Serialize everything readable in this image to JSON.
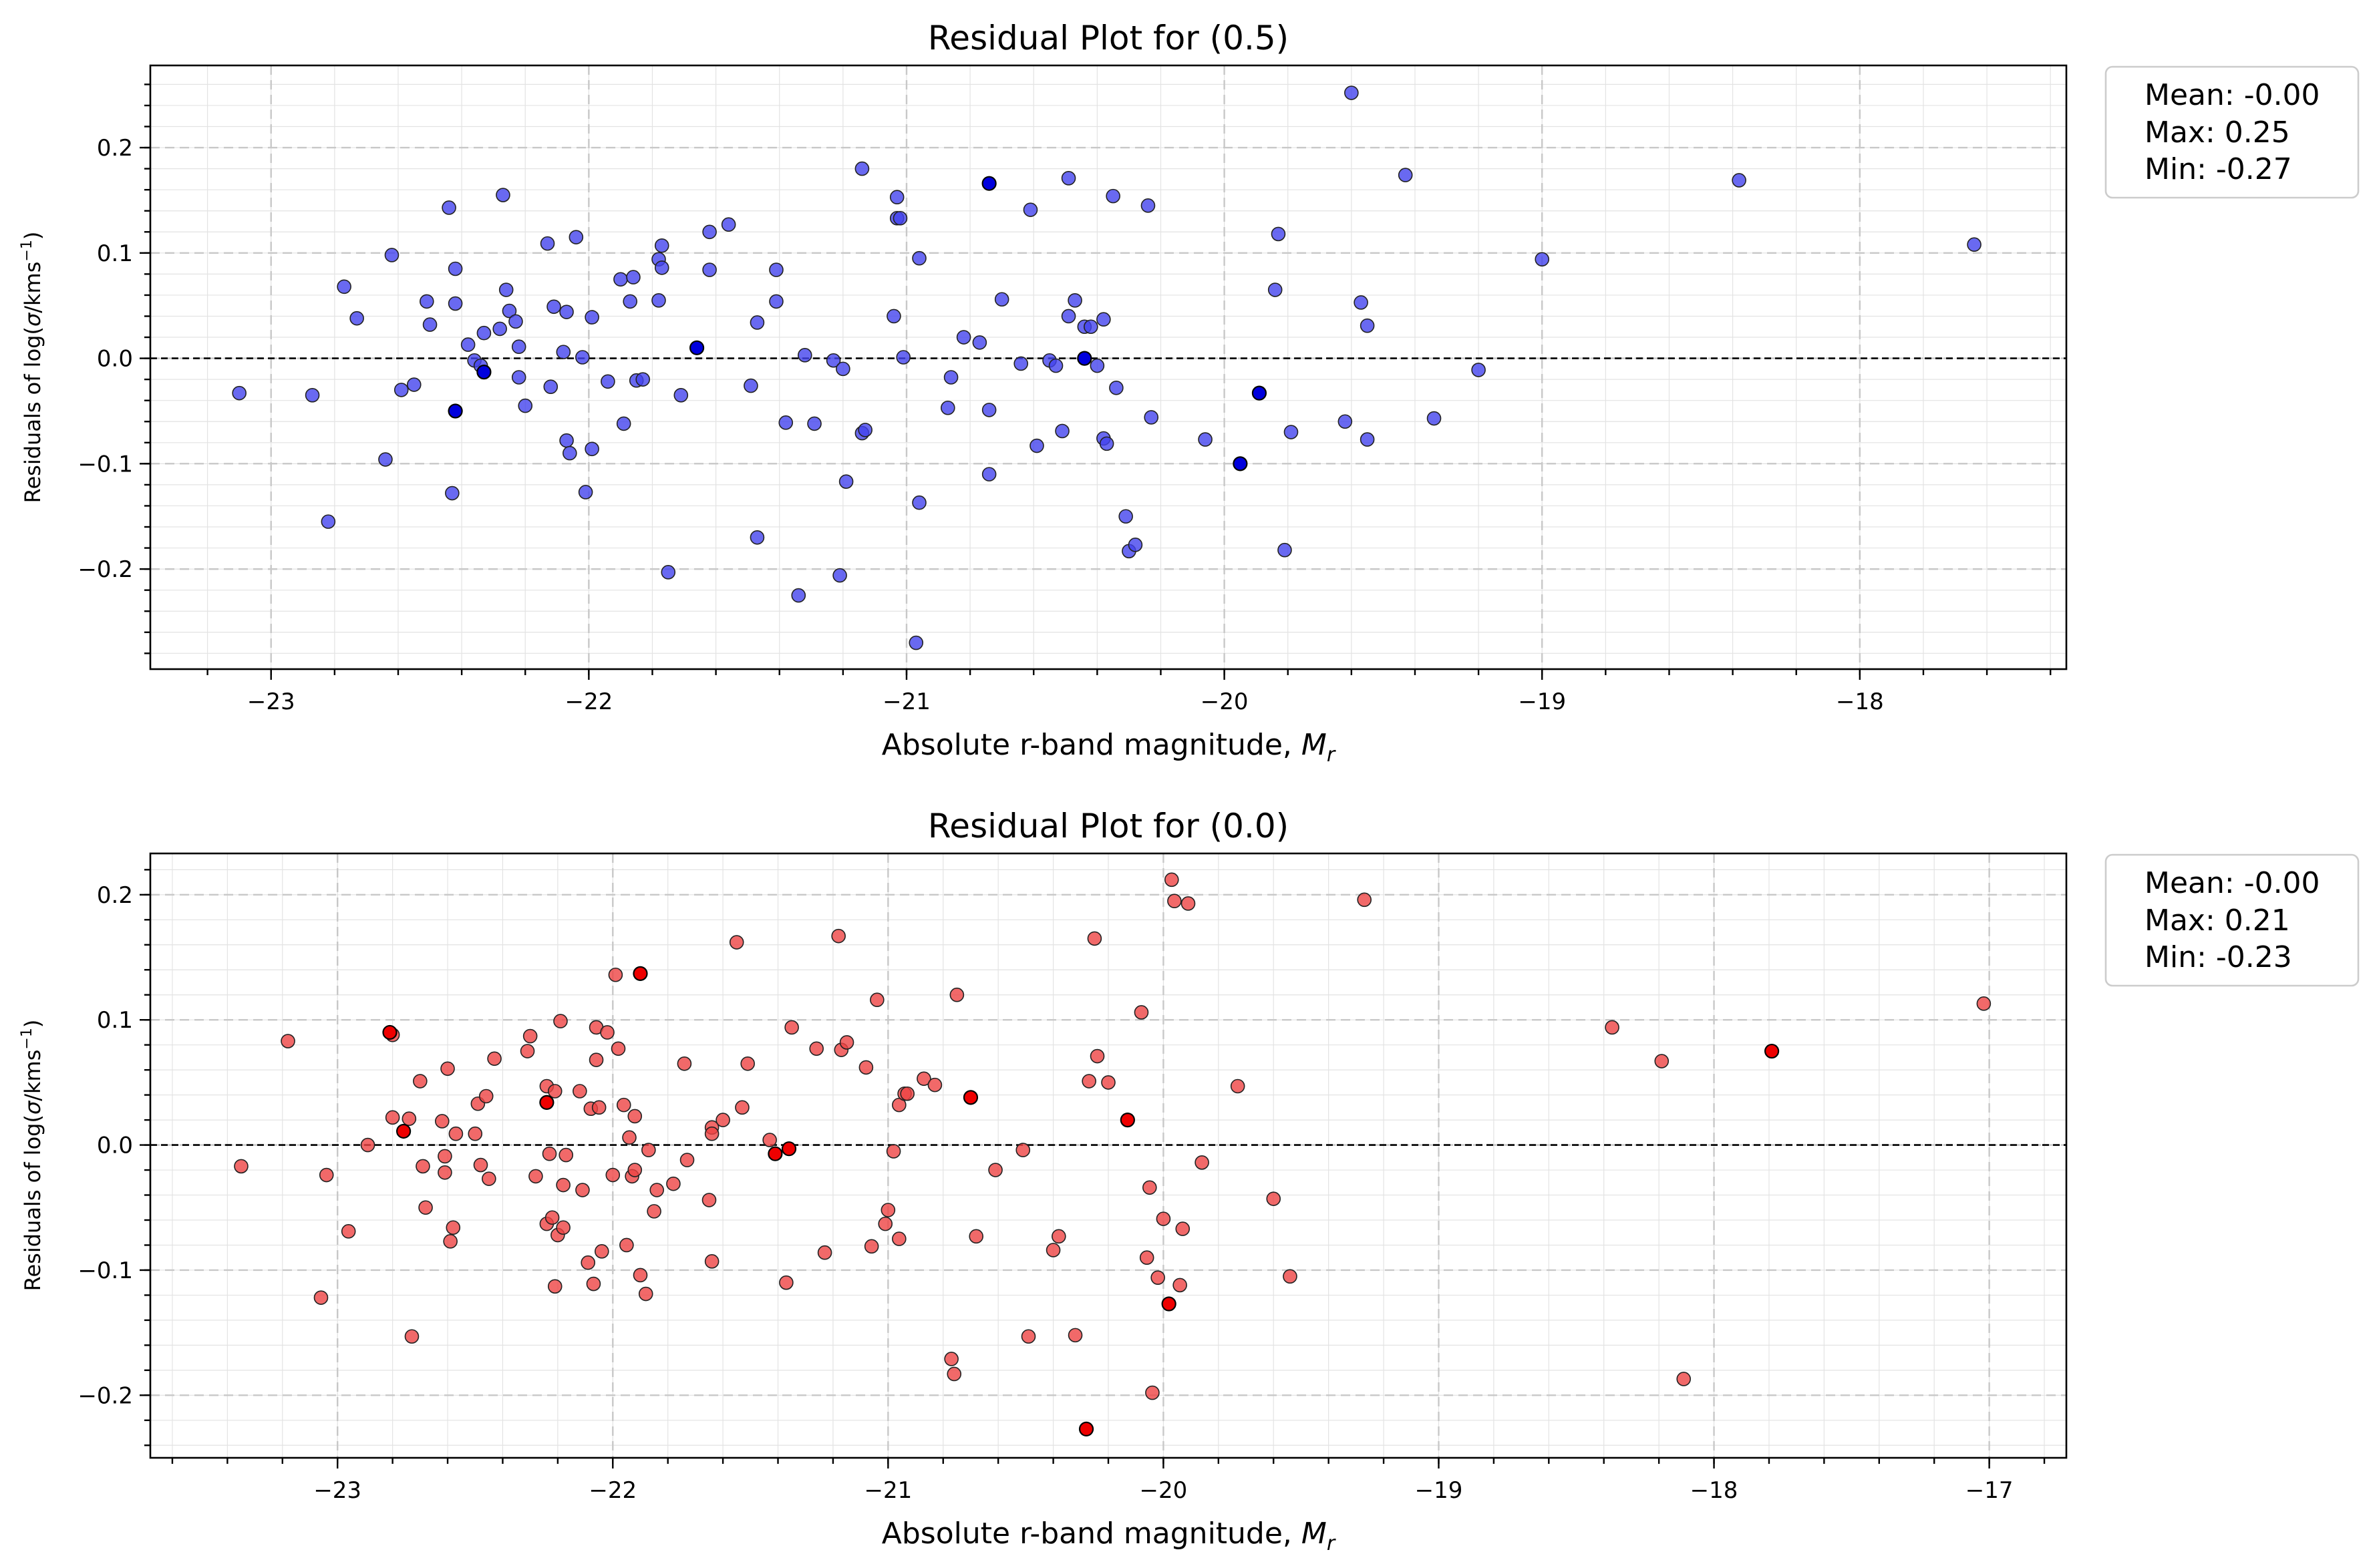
{
  "chart_data": [
    {
      "type": "scatter",
      "title": "Residual Plot for (0.5)",
      "xlabel_main": "Absolute r-band magnitude, ",
      "xlabel_symbol": "M",
      "xlabel_sub": "r",
      "ylabel_main": "Residuals of log(",
      "ylabel_sigma": "σ",
      "ylabel_rest": "/kms",
      "ylabel_sup": "−1",
      "ylabel_close": ")",
      "xlim": [
        -23.38,
        -17.35
      ],
      "ylim": [
        -0.295,
        0.278
      ],
      "xticks": [
        -23,
        -22,
        -21,
        -20,
        -19,
        -18
      ],
      "xtick_labels": [
        "−23",
        "−22",
        "−21",
        "−20",
        "−19",
        "−18"
      ],
      "yticks": [
        -0.2,
        -0.1,
        0.0,
        0.1,
        0.2
      ],
      "ytick_labels": [
        "−0.2",
        "−0.1",
        "0.0",
        "0.1",
        "0.2"
      ],
      "grid": true,
      "reference_line_y": 0.0,
      "legend_placement": "outside-right-top",
      "stats": [
        "Mean: -0.00",
        "Max: 0.25",
        "Min: -0.27"
      ],
      "point_color": "#4444ee",
      "outlier_color": "#0000dd",
      "points": [
        [
          -23.1,
          -0.033
        ],
        [
          -22.87,
          -0.035
        ],
        [
          -22.82,
          -0.155
        ],
        [
          -22.77,
          0.068
        ],
        [
          -22.73,
          0.038
        ],
        [
          -22.64,
          -0.096
        ],
        [
          -22.62,
          0.098
        ],
        [
          -22.59,
          -0.03
        ],
        [
          -22.55,
          -0.025
        ],
        [
          -22.51,
          0.054
        ],
        [
          -22.5,
          0.032
        ],
        [
          -22.44,
          0.143
        ],
        [
          -22.43,
          -0.128
        ],
        [
          -22.42,
          0.085
        ],
        [
          -22.42,
          0.052
        ],
        [
          -22.38,
          0.013
        ],
        [
          -22.36,
          -0.002
        ],
        [
          -22.34,
          -0.007
        ],
        [
          -22.33,
          0.024
        ],
        [
          -22.28,
          0.028
        ],
        [
          -22.27,
          0.155
        ],
        [
          -22.26,
          0.065
        ],
        [
          -22.25,
          0.045
        ],
        [
          -22.23,
          0.035
        ],
        [
          -22.22,
          0.011
        ],
        [
          -22.22,
          -0.018
        ],
        [
          -22.2,
          -0.045
        ],
        [
          -22.13,
          0.109
        ],
        [
          -22.12,
          -0.027
        ],
        [
          -22.11,
          0.049
        ],
        [
          -22.08,
          0.006
        ],
        [
          -22.07,
          0.044
        ],
        [
          -22.07,
          -0.078
        ],
        [
          -22.06,
          -0.09
        ],
        [
          -22.04,
          0.115
        ],
        [
          -22.02,
          0.001
        ],
        [
          -22.01,
          -0.127
        ],
        [
          -21.99,
          -0.086
        ],
        [
          -21.99,
          0.039
        ],
        [
          -21.94,
          -0.022
        ],
        [
          -21.9,
          0.075
        ],
        [
          -21.89,
          -0.062
        ],
        [
          -21.87,
          0.054
        ],
        [
          -21.86,
          0.077
        ],
        [
          -21.85,
          -0.021
        ],
        [
          -21.83,
          -0.02
        ],
        [
          -21.78,
          0.094
        ],
        [
          -21.78,
          0.055
        ],
        [
          -21.77,
          0.086
        ],
        [
          -21.77,
          0.107
        ],
        [
          -21.75,
          -0.203
        ],
        [
          -21.71,
          -0.035
        ],
        [
          -21.62,
          0.12
        ],
        [
          -21.62,
          0.084
        ],
        [
          -21.56,
          0.127
        ],
        [
          -21.49,
          -0.026
        ],
        [
          -21.47,
          0.034
        ],
        [
          -21.47,
          -0.17
        ],
        [
          -21.41,
          0.084
        ],
        [
          -21.41,
          0.054
        ],
        [
          -21.38,
          -0.061
        ],
        [
          -21.34,
          -0.225
        ],
        [
          -21.32,
          0.003
        ],
        [
          -21.29,
          -0.062
        ],
        [
          -21.23,
          -0.002
        ],
        [
          -21.21,
          -0.206
        ],
        [
          -21.2,
          -0.01
        ],
        [
          -21.19,
          -0.117
        ],
        [
          -21.14,
          0.18
        ],
        [
          -21.14,
          -0.071
        ],
        [
          -21.13,
          -0.068
        ],
        [
          -21.04,
          0.04
        ],
        [
          -21.03,
          0.133
        ],
        [
          -21.03,
          0.153
        ],
        [
          -21.02,
          0.133
        ],
        [
          -21.01,
          0.001
        ],
        [
          -20.97,
          -0.27
        ],
        [
          -20.96,
          0.095
        ],
        [
          -20.96,
          -0.137
        ],
        [
          -20.87,
          -0.047
        ],
        [
          -20.86,
          -0.018
        ],
        [
          -20.82,
          0.02
        ],
        [
          -20.77,
          0.015
        ],
        [
          -20.74,
          -0.049
        ],
        [
          -20.74,
          -0.11
        ],
        [
          -20.7,
          0.056
        ],
        [
          -20.64,
          -0.005
        ],
        [
          -20.61,
          0.141
        ],
        [
          -20.59,
          -0.083
        ],
        [
          -20.55,
          -0.002
        ],
        [
          -20.53,
          -0.007
        ],
        [
          -20.51,
          -0.069
        ],
        [
          -20.49,
          0.171
        ],
        [
          -20.49,
          0.04
        ],
        [
          -20.47,
          0.055
        ],
        [
          -20.44,
          0.03
        ],
        [
          -20.42,
          0.03
        ],
        [
          -20.4,
          -0.007
        ],
        [
          -20.38,
          -0.076
        ],
        [
          -20.38,
          0.037
        ],
        [
          -20.37,
          -0.081
        ],
        [
          -20.35,
          0.154
        ],
        [
          -20.34,
          -0.028
        ],
        [
          -20.31,
          -0.15
        ],
        [
          -20.3,
          -0.183
        ],
        [
          -20.28,
          -0.177
        ],
        [
          -20.24,
          0.145
        ],
        [
          -20.23,
          -0.056
        ],
        [
          -20.06,
          -0.077
        ],
        [
          -19.84,
          0.065
        ],
        [
          -19.83,
          0.118
        ],
        [
          -19.81,
          -0.182
        ],
        [
          -19.79,
          -0.07
        ],
        [
          -19.62,
          -0.06
        ],
        [
          -19.6,
          0.252
        ],
        [
          -19.57,
          0.053
        ],
        [
          -19.55,
          -0.077
        ],
        [
          -19.55,
          0.031
        ],
        [
          -19.43,
          0.174
        ],
        [
          -19.34,
          -0.057
        ],
        [
          -19.2,
          -0.011
        ],
        [
          -19.0,
          0.094
        ],
        [
          -18.38,
          0.169
        ],
        [
          -17.64,
          0.108
        ]
      ],
      "outliers": [
        [
          -22.42,
          -0.05
        ],
        [
          -22.33,
          -0.013
        ],
        [
          -21.66,
          0.01
        ],
        [
          -20.74,
          0.166
        ],
        [
          -20.44,
          0.0
        ],
        [
          -19.95,
          -0.1
        ],
        [
          -19.89,
          -0.033
        ]
      ]
    },
    {
      "type": "scatter",
      "title": "Residual Plot for (0.0)",
      "xlabel_main": "Absolute r-band magnitude, ",
      "xlabel_symbol": "M",
      "xlabel_sub": "r",
      "ylabel_main": "Residuals of log(",
      "ylabel_sigma": "σ",
      "ylabel_rest": "/kms",
      "ylabel_sup": "−1",
      "ylabel_close": ")",
      "xlim": [
        -23.68,
        -16.72
      ],
      "ylim": [
        -0.25,
        0.233
      ],
      "xticks": [
        -23,
        -22,
        -21,
        -20,
        -19,
        -18,
        -17
      ],
      "xtick_labels": [
        "−23",
        "−22",
        "−21",
        "−20",
        "−19",
        "−18",
        "−17"
      ],
      "yticks": [
        -0.2,
        -0.1,
        0.0,
        0.1,
        0.2
      ],
      "ytick_labels": [
        "−0.2",
        "−0.1",
        "0.0",
        "0.1",
        "0.2"
      ],
      "grid": true,
      "reference_line_y": 0.0,
      "legend_placement": "outside-right-top",
      "stats": [
        "Mean: -0.00",
        "Max: 0.21",
        "Min: -0.23"
      ],
      "point_color": "#ee4444",
      "outlier_color": "#ee0000",
      "points": [
        [
          -23.35,
          -0.017
        ],
        [
          -23.18,
          0.083
        ],
        [
          -23.06,
          -0.122
        ],
        [
          -23.04,
          -0.024
        ],
        [
          -22.96,
          -0.069
        ],
        [
          -22.89,
          0.0
        ],
        [
          -22.8,
          0.088
        ],
        [
          -22.8,
          0.022
        ],
        [
          -22.74,
          0.021
        ],
        [
          -22.73,
          -0.153
        ],
        [
          -22.7,
          0.051
        ],
        [
          -22.69,
          -0.017
        ],
        [
          -22.68,
          -0.05
        ],
        [
          -22.62,
          0.019
        ],
        [
          -22.61,
          -0.009
        ],
        [
          -22.61,
          -0.022
        ],
        [
          -22.6,
          0.061
        ],
        [
          -22.59,
          -0.077
        ],
        [
          -22.58,
          -0.066
        ],
        [
          -22.57,
          0.009
        ],
        [
          -22.5,
          0.009
        ],
        [
          -22.49,
          0.033
        ],
        [
          -22.48,
          -0.016
        ],
        [
          -22.46,
          0.039
        ],
        [
          -22.45,
          -0.027
        ],
        [
          -22.43,
          0.069
        ],
        [
          -22.31,
          0.075
        ],
        [
          -22.3,
          0.087
        ],
        [
          -22.28,
          -0.025
        ],
        [
          -22.24,
          0.047
        ],
        [
          -22.24,
          -0.063
        ],
        [
          -22.23,
          -0.007
        ],
        [
          -22.22,
          -0.058
        ],
        [
          -22.21,
          0.043
        ],
        [
          -22.21,
          -0.113
        ],
        [
          -22.2,
          -0.072
        ],
        [
          -22.19,
          0.099
        ],
        [
          -22.18,
          -0.066
        ],
        [
          -22.18,
          -0.032
        ],
        [
          -22.17,
          -0.008
        ],
        [
          -22.12,
          0.043
        ],
        [
          -22.11,
          -0.036
        ],
        [
          -22.09,
          -0.094
        ],
        [
          -22.08,
          0.029
        ],
        [
          -22.07,
          -0.111
        ],
        [
          -22.06,
          0.068
        ],
        [
          -22.06,
          0.094
        ],
        [
          -22.05,
          0.03
        ],
        [
          -22.04,
          -0.085
        ],
        [
          -22.02,
          0.09
        ],
        [
          -22.0,
          -0.024
        ],
        [
          -21.99,
          0.136
        ],
        [
          -21.98,
          0.077
        ],
        [
          -21.96,
          0.032
        ],
        [
          -21.95,
          -0.08
        ],
        [
          -21.94,
          0.006
        ],
        [
          -21.93,
          -0.025
        ],
        [
          -21.92,
          0.023
        ],
        [
          -21.92,
          -0.02
        ],
        [
          -21.9,
          -0.104
        ],
        [
          -21.88,
          -0.119
        ],
        [
          -21.87,
          -0.004
        ],
        [
          -21.85,
          -0.053
        ],
        [
          -21.84,
          -0.036
        ],
        [
          -21.78,
          -0.031
        ],
        [
          -21.74,
          0.065
        ],
        [
          -21.73,
          -0.012
        ],
        [
          -21.65,
          -0.044
        ],
        [
          -21.64,
          0.014
        ],
        [
          -21.64,
          -0.093
        ],
        [
          -21.64,
          0.009
        ],
        [
          -21.6,
          0.02
        ],
        [
          -21.55,
          0.162
        ],
        [
          -21.53,
          0.03
        ],
        [
          -21.51,
          0.065
        ],
        [
          -21.43,
          0.004
        ],
        [
          -21.37,
          -0.11
        ],
        [
          -21.35,
          0.094
        ],
        [
          -21.26,
          0.077
        ],
        [
          -21.23,
          -0.086
        ],
        [
          -21.18,
          0.167
        ],
        [
          -21.17,
          0.076
        ],
        [
          -21.15,
          0.082
        ],
        [
          -21.08,
          0.062
        ],
        [
          -21.06,
          -0.081
        ],
        [
          -21.04,
          0.116
        ],
        [
          -21.01,
          -0.063
        ],
        [
          -21.0,
          -0.052
        ],
        [
          -20.98,
          -0.005
        ],
        [
          -20.96,
          -0.075
        ],
        [
          -20.96,
          0.032
        ],
        [
          -20.94,
          0.041
        ],
        [
          -20.93,
          0.041
        ],
        [
          -20.87,
          0.053
        ],
        [
          -20.83,
          0.048
        ],
        [
          -20.77,
          -0.171
        ],
        [
          -20.76,
          -0.183
        ],
        [
          -20.75,
          0.12
        ],
        [
          -20.68,
          -0.073
        ],
        [
          -20.61,
          -0.02
        ],
        [
          -20.51,
          -0.004
        ],
        [
          -20.49,
          -0.153
        ],
        [
          -20.4,
          -0.084
        ],
        [
          -20.38,
          -0.073
        ],
        [
          -20.32,
          -0.152
        ],
        [
          -20.27,
          0.051
        ],
        [
          -20.25,
          0.165
        ],
        [
          -20.24,
          0.071
        ],
        [
          -20.2,
          0.05
        ],
        [
          -20.08,
          0.106
        ],
        [
          -20.06,
          -0.09
        ],
        [
          -20.05,
          -0.034
        ],
        [
          -20.04,
          -0.198
        ],
        [
          -20.02,
          -0.106
        ],
        [
          -20.0,
          -0.059
        ],
        [
          -19.97,
          0.212
        ],
        [
          -19.96,
          0.195
        ],
        [
          -19.94,
          -0.112
        ],
        [
          -19.93,
          -0.067
        ],
        [
          -19.91,
          0.193
        ],
        [
          -19.86,
          -0.014
        ],
        [
          -19.73,
          0.047
        ],
        [
          -19.6,
          -0.043
        ],
        [
          -19.54,
          -0.105
        ],
        [
          -19.27,
          0.196
        ],
        [
          -18.37,
          0.094
        ],
        [
          -18.19,
          0.067
        ],
        [
          -18.11,
          -0.187
        ],
        [
          -17.02,
          0.113
        ]
      ],
      "outliers": [
        [
          -22.81,
          0.09
        ],
        [
          -22.76,
          0.011
        ],
        [
          -22.24,
          0.034
        ],
        [
          -21.9,
          0.137
        ],
        [
          -21.41,
          -0.007
        ],
        [
          -21.36,
          -0.003
        ],
        [
          -20.7,
          0.038
        ],
        [
          -20.28,
          -0.227
        ],
        [
          -20.13,
          0.02
        ],
        [
          -19.98,
          -0.127
        ],
        [
          -17.79,
          0.075
        ]
      ]
    }
  ]
}
